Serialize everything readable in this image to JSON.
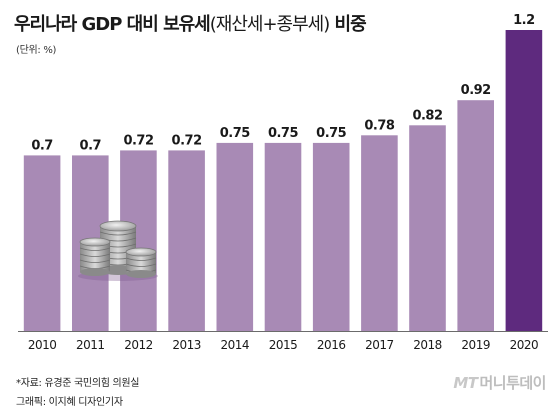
{
  "header": {
    "title_main": "우리나라 GDP 대비 보유세",
    "title_paren": "(재산세+종부세)",
    "title_tail": " 비중",
    "unit": "(단위: %)"
  },
  "footer": {
    "source": "*자료: 유경준 국민의힘 의원실",
    "graphic": "그래픽: 이지혜 디자인기자",
    "logo_mark": "MT",
    "logo_text": "머니투데이"
  },
  "colors": {
    "bar": "#a88ab5",
    "bar_highlight": "#5e2a7e",
    "axis": "#6b6b6b"
  },
  "chart_data": {
    "type": "bar",
    "title": "우리나라 GDP 대비 보유세(재산세+종부세) 비중",
    "categories": [
      "2010",
      "2011",
      "2012",
      "2013",
      "2014",
      "2015",
      "2016",
      "2017",
      "2018",
      "2019",
      "2020"
    ],
    "values": [
      0.7,
      0.7,
      0.72,
      0.72,
      0.75,
      0.75,
      0.75,
      0.78,
      0.82,
      0.92,
      1.2
    ],
    "value_labels": [
      "0.7",
      "0.7",
      "0.72",
      "0.72",
      "0.75",
      "0.75",
      "0.75",
      "0.78",
      "0.82",
      "0.92",
      "1.2"
    ],
    "unit": "%",
    "highlight_index": 10,
    "ylim": [
      0,
      1.2
    ],
    "grid": false,
    "legend": "none"
  }
}
